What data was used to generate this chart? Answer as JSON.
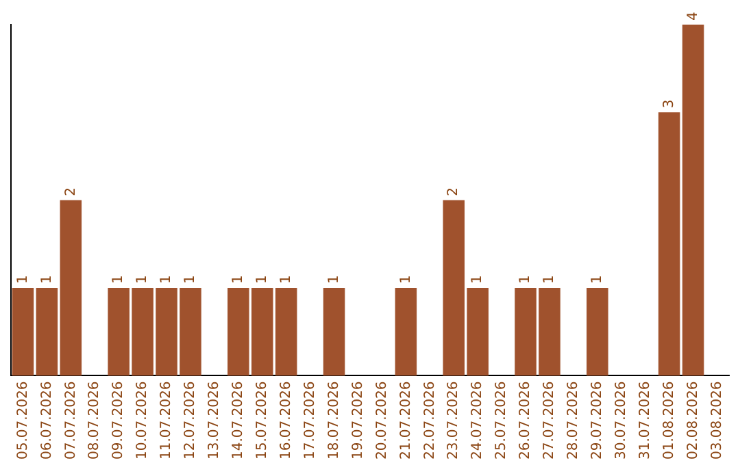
{
  "chart_data": {
    "type": "bar",
    "categories": [
      "05.07.2026",
      "06.07.2026",
      "07.07.2026",
      "08.07.2026",
      "09.07.2026",
      "10.07.2026",
      "11.07.2026",
      "12.07.2026",
      "13.07.2026",
      "14.07.2026",
      "15.07.2026",
      "16.07.2026",
      "17.07.2026",
      "18.07.2026",
      "19.07.2026",
      "20.07.2026",
      "21.07.2026",
      "22.07.2026",
      "23.07.2026",
      "24.07.2026",
      "25.07.2026",
      "26.07.2026",
      "27.07.2026",
      "28.07.2026",
      "29.07.2026",
      "30.07.2026",
      "31.07.2026",
      "01.08.2026",
      "02.08.2026",
      "03.08.2026"
    ],
    "values": [
      1,
      1,
      2,
      null,
      1,
      1,
      1,
      1,
      null,
      1,
      1,
      1,
      null,
      1,
      null,
      null,
      1,
      null,
      2,
      1,
      null,
      1,
      1,
      null,
      1,
      null,
      null,
      3,
      4,
      null
    ],
    "color": "#a0522d",
    "data_labels": true,
    "tick_labels": "x",
    "grid": false,
    "legend": false
  }
}
